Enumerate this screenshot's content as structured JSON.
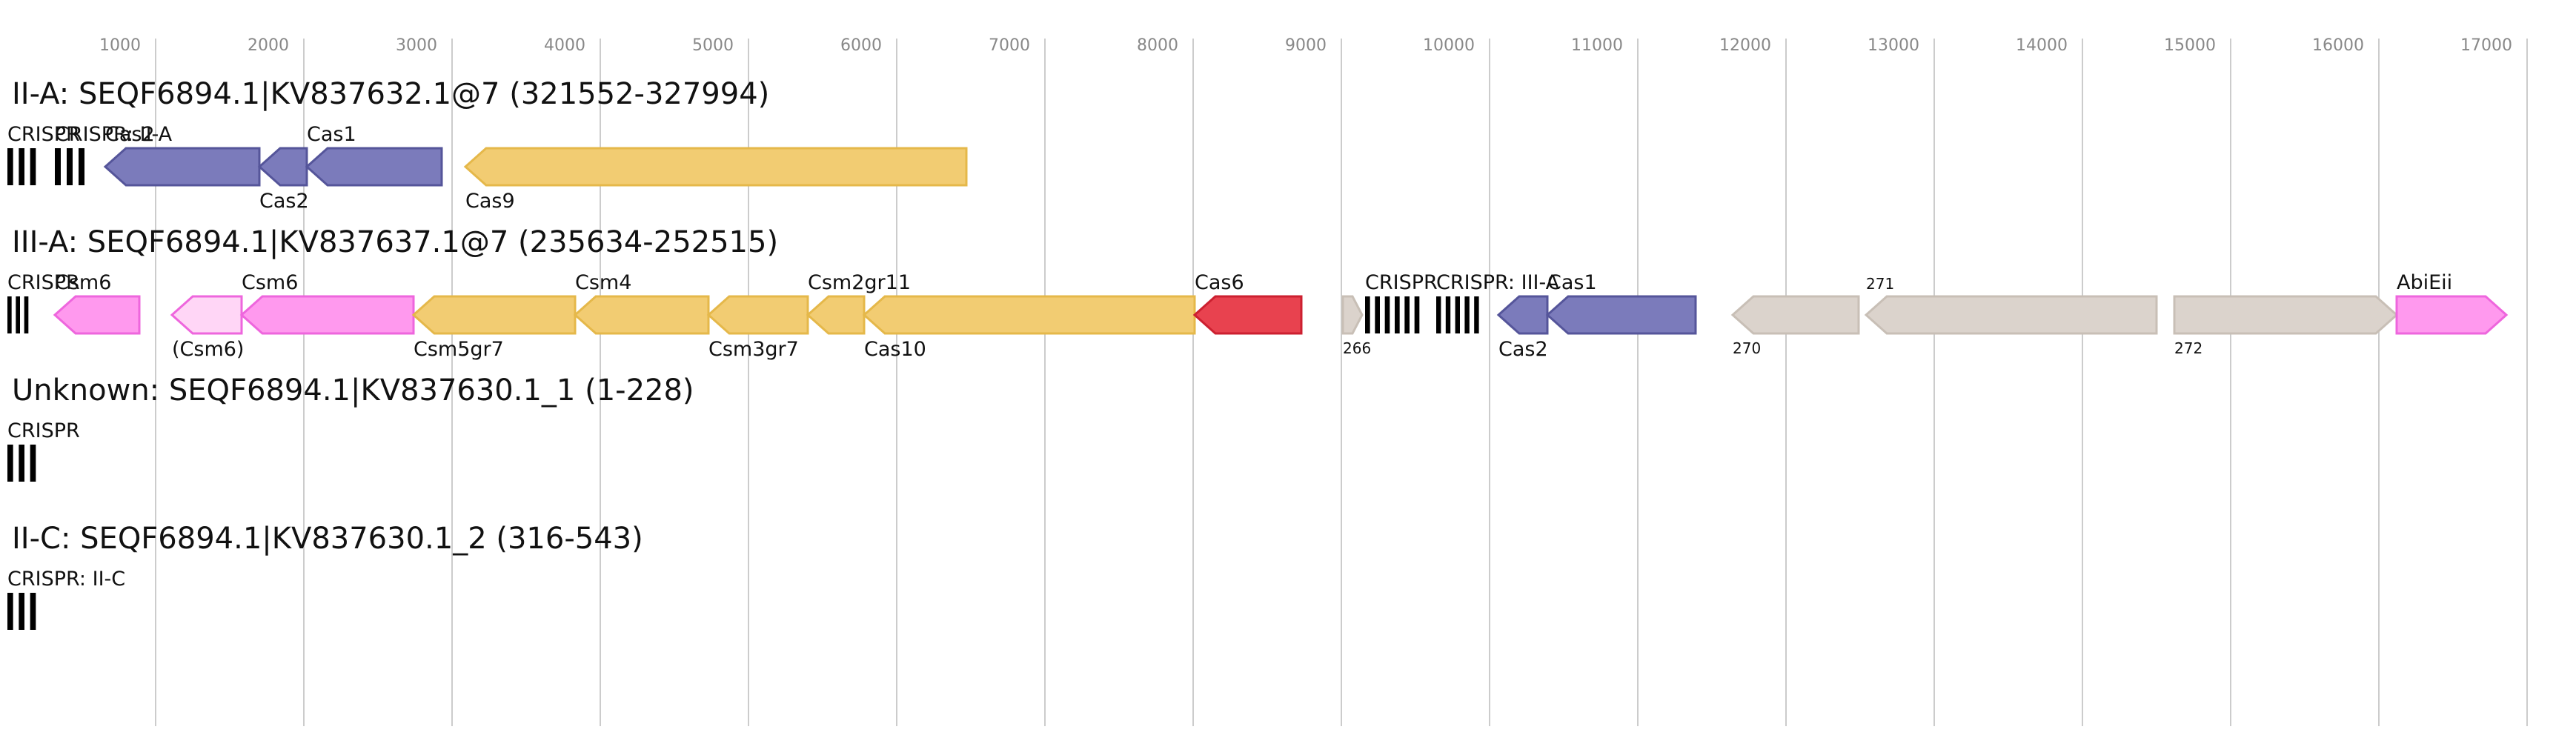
{
  "axis": {
    "ticks": [
      "1000",
      "2000",
      "3000",
      "4000",
      "5000",
      "6000",
      "7000",
      "8000",
      "9000",
      "10000",
      "11000",
      "12000",
      "13000",
      "14000",
      "15000",
      "16000",
      "17000"
    ]
  },
  "colors": {
    "blue": "#7b7bbb",
    "blue_edge": "#55559a",
    "yellow": "#f2cc72",
    "yellow_edge": "#e5b84a",
    "pink": "#ff99ee",
    "pink_edge": "#ee66dd",
    "pink_light": "#ffd6f6",
    "red": "#e8424f",
    "red_edge": "#cc2030",
    "grey": "#dbd3cc",
    "grey_edge": "#c8bfb6",
    "grid": "#cccccc"
  },
  "tracks": [
    {
      "title": "II-A: SEQF6894.1|KV837632.1@7 (321552-327994)",
      "elements": [
        {
          "label": "CRISPR",
          "label_pos": "above",
          "type": "array",
          "start": 0,
          "end": 230
        },
        {
          "label": "CRISPR: II-A",
          "label_pos": "above",
          "type": "array",
          "start": 320,
          "end": 560
        },
        {
          "label": "Cas2",
          "label_pos": "above",
          "type": "gene",
          "dir": "left",
          "color": "blue",
          "start": 660,
          "end": 1700,
          "label_at": "end"
        },
        {
          "label": "Cas2",
          "label_pos": "below",
          "type": "gene",
          "dir": "left",
          "color": "blue",
          "start": 1700,
          "end": 2020
        },
        {
          "label": "Cas1",
          "label_pos": "above",
          "type": "gene",
          "dir": "left",
          "color": "blue",
          "start": 2020,
          "end": 2930
        },
        {
          "label": "Cas9",
          "label_pos": "below",
          "type": "gene",
          "dir": "left",
          "color": "yellow",
          "start": 3090,
          "end": 6470
        }
      ]
    },
    {
      "title": "III-A: SEQF6894.1|KV837637.1@7 (235634-252515)",
      "elements": [
        {
          "label": "CRISPR",
          "label_pos": "above",
          "type": "array",
          "start": 0,
          "end": 170
        },
        {
          "label": "Csm6",
          "label_pos": "above",
          "type": "gene",
          "dir": "left",
          "color": "pink",
          "start": 320,
          "end": 890
        },
        {
          "label": "(Csm6)",
          "label_pos": "below",
          "type": "gene",
          "dir": "left",
          "color": "pink_light",
          "start": 1110,
          "end": 1580
        },
        {
          "label": "Csm6",
          "label_pos": "above",
          "type": "gene",
          "dir": "left",
          "color": "pink",
          "start": 1580,
          "end": 2740
        },
        {
          "label": "Csm5gr7",
          "label_pos": "below",
          "type": "gene",
          "dir": "left",
          "color": "yellow",
          "start": 2740,
          "end": 3830
        },
        {
          "label": "Csm4",
          "label_pos": "above",
          "type": "gene",
          "dir": "left",
          "color": "yellow",
          "start": 3830,
          "end": 4730
        },
        {
          "label": "Csm3gr7",
          "label_pos": "below",
          "type": "gene",
          "dir": "left",
          "color": "yellow",
          "start": 4730,
          "end": 5400
        },
        {
          "label": "Csm2gr11",
          "label_pos": "above",
          "type": "gene",
          "dir": "left",
          "color": "yellow",
          "start": 5400,
          "end": 5780
        },
        {
          "label": "Cas10",
          "label_pos": "below",
          "type": "gene",
          "dir": "left",
          "color": "yellow",
          "start": 5780,
          "end": 8010
        },
        {
          "label": "Cas6",
          "label_pos": "above",
          "type": "gene",
          "dir": "left",
          "color": "red",
          "start": 8010,
          "end": 8730
        },
        {
          "label": "266",
          "label_pos": "below_small",
          "type": "gene",
          "dir": "right",
          "color": "grey",
          "start": 9010,
          "end": 9140
        },
        {
          "label": "CRISPR",
          "label_pos": "above",
          "type": "array",
          "start": 9160,
          "end": 9560
        },
        {
          "label": "CRISPR: III-A",
          "label_pos": "above",
          "type": "array",
          "start": 9640,
          "end": 9960
        },
        {
          "label": "Cas2",
          "label_pos": "below",
          "type": "gene",
          "dir": "left",
          "color": "blue",
          "start": 10060,
          "end": 10390
        },
        {
          "label": "Cas1",
          "label_pos": "above",
          "type": "gene",
          "dir": "left",
          "color": "blue",
          "start": 10390,
          "end": 11390
        },
        {
          "label": "270",
          "label_pos": "below_small",
          "type": "gene",
          "dir": "left",
          "color": "grey",
          "start": 11640,
          "end": 12490
        },
        {
          "label": "271",
          "label_pos": "above_small",
          "type": "gene",
          "dir": "left",
          "color": "grey",
          "start": 12540,
          "end": 14500
        },
        {
          "label": "272",
          "label_pos": "below_small",
          "type": "gene",
          "dir": "right",
          "color": "grey",
          "start": 14620,
          "end": 16120
        },
        {
          "label": "AbiEii",
          "label_pos": "above",
          "type": "gene",
          "dir": "right",
          "color": "pink",
          "start": 16120,
          "end": 16860
        }
      ]
    },
    {
      "title": "Unknown: SEQF6894.1|KV837630.1_1 (1-228)",
      "elements": [
        {
          "label": "CRISPR",
          "label_pos": "above",
          "type": "array",
          "start": 0,
          "end": 230
        }
      ]
    },
    {
      "title": "II-C: SEQF6894.1|KV837630.1_2 (316-543)",
      "elements": [
        {
          "label": "CRISPR: II-C",
          "label_pos": "above",
          "type": "array",
          "start": 0,
          "end": 230
        }
      ]
    }
  ]
}
